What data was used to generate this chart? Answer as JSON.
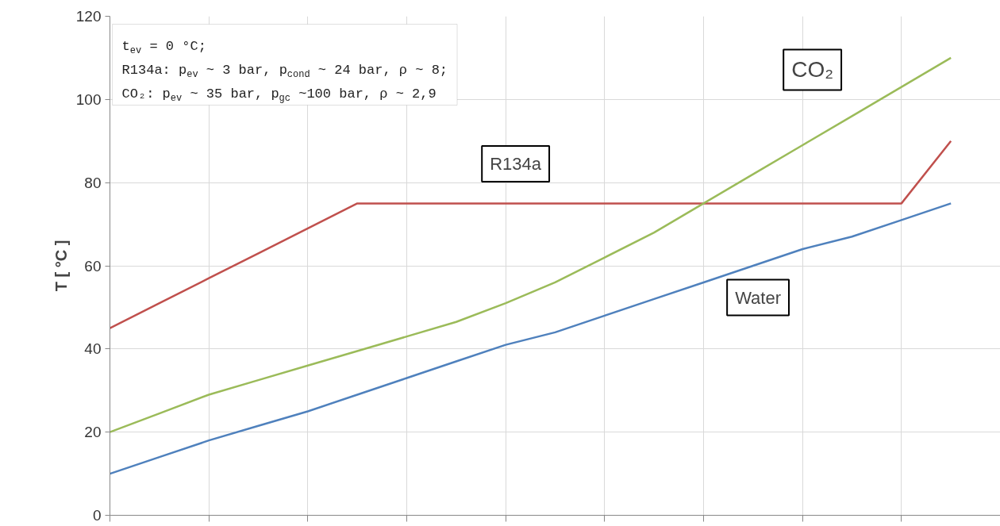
{
  "chart_data": {
    "type": "line",
    "ylabel": "T [ °C ]",
    "categories": [
      null,
      null,
      null,
      null,
      null,
      null,
      null,
      null,
      null,
      null,
      null,
      null,
      null,
      null,
      null,
      null,
      null,
      null
    ],
    "series": [
      {
        "name": "Water",
        "color": "#4f81bd",
        "values": [
          10,
          14,
          18,
          21.5,
          25,
          29,
          33,
          37,
          41,
          44,
          48,
          52,
          56,
          60,
          64,
          67,
          71,
          75
        ]
      },
      {
        "name": "R134a",
        "color": "#c0504d",
        "values": [
          45,
          51,
          57,
          63,
          69,
          75,
          75,
          75,
          75,
          75,
          75,
          75,
          75,
          75,
          75,
          75,
          75,
          90
        ]
      },
      {
        "name": "CO₂",
        "color": "#9bbb59",
        "values": [
          20,
          24.5,
          29,
          32.5,
          36,
          39.5,
          43,
          46.5,
          51,
          56,
          62,
          68,
          75,
          82,
          89,
          96,
          103,
          110
        ]
      }
    ],
    "annotations": [
      "t$_{ev}$ = 0 °C;\nR134a: p$_{ev}$ ~ 3 bar, p$_{cond}$ ~ 24 bar, ρ ~ 8;\nCO₂: p$_{ev}$ ~ 35 bar, p$_{gc}$ ~100 bar, ρ ~ 2,9"
    ],
    "ylim": [
      0,
      120
    ],
    "yticks": [
      0,
      20,
      40,
      60,
      80,
      100,
      120
    ],
    "grid": true,
    "legend": false,
    "marker": "none",
    "line_style": "solid"
  }
}
